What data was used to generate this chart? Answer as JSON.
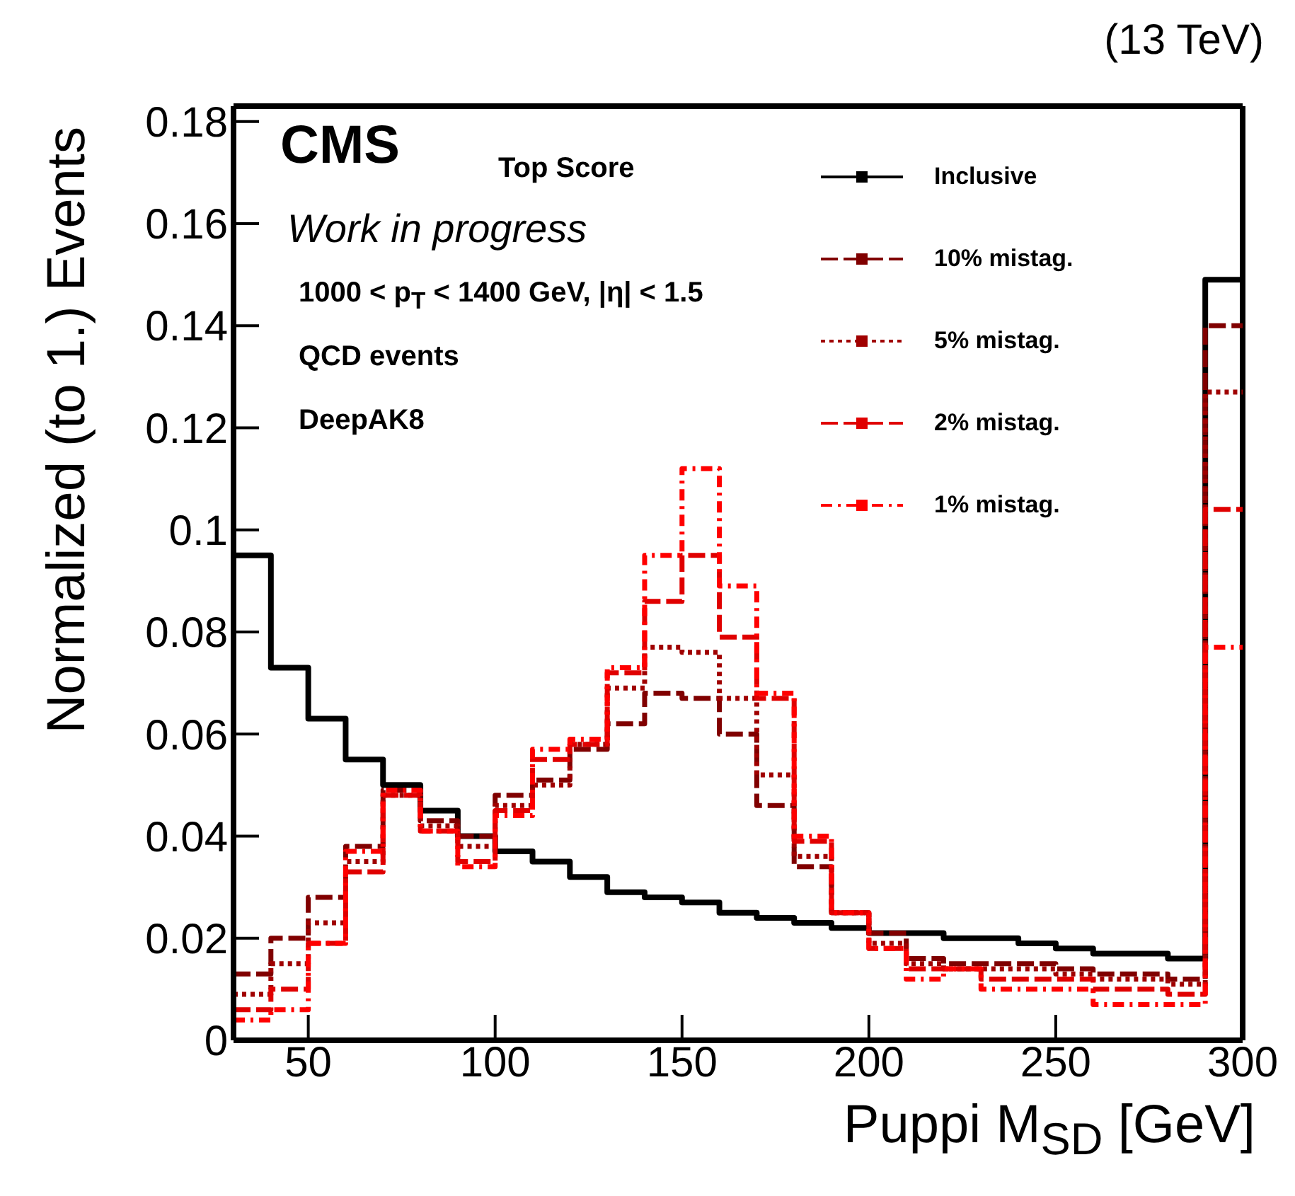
{
  "chart_data": {
    "type": "histogram",
    "title": "(13 TeV)",
    "xlabel": "Puppi M$_{SD}$ [GeV]",
    "ylabel": "Normalized (to 1.) Events",
    "annotations": [
      "CMS",
      "Top Score",
      "Work in progress",
      "1000 < p$_{T}$ < 1400 GeV, |η| < 1.5",
      "QCD events",
      "DeepAK8"
    ],
    "bins": [
      30,
      40,
      50,
      60,
      70,
      80,
      90,
      100,
      110,
      120,
      130,
      140,
      150,
      160,
      170,
      180,
      190,
      200,
      210,
      220,
      230,
      240,
      250,
      260,
      270,
      280,
      290,
      300
    ],
    "series": [
      {
        "name": "Inclusive",
        "color": "#000000",
        "line_style": "solid",
        "values": [
          0.095,
          0.073,
          0.063,
          0.055,
          0.05,
          0.045,
          0.04,
          0.037,
          0.035,
          0.032,
          0.029,
          0.028,
          0.027,
          0.025,
          0.024,
          0.023,
          0.022,
          0.021,
          0.021,
          0.02,
          0.02,
          0.019,
          0.018,
          0.017,
          0.017,
          0.016,
          0.149
        ]
      },
      {
        "name": "10% mistag.",
        "color": "#800000",
        "line_style": "dashed",
        "values": [
          0.013,
          0.02,
          0.028,
          0.038,
          0.049,
          0.043,
          0.04,
          0.048,
          0.051,
          0.057,
          0.062,
          0.068,
          0.067,
          0.06,
          0.046,
          0.034,
          0.025,
          0.021,
          0.016,
          0.015,
          0.015,
          0.015,
          0.014,
          0.013,
          0.013,
          0.012,
          0.14
        ]
      },
      {
        "name": "5% mistag.",
        "color": "#a00000",
        "line_style": "dotted",
        "values": [
          0.009,
          0.015,
          0.023,
          0.035,
          0.048,
          0.042,
          0.038,
          0.046,
          0.05,
          0.058,
          0.069,
          0.077,
          0.076,
          0.067,
          0.052,
          0.036,
          0.025,
          0.019,
          0.015,
          0.014,
          0.014,
          0.014,
          0.013,
          0.012,
          0.012,
          0.011,
          0.127
        ]
      },
      {
        "name": "2% mistag.",
        "color": "#e00000",
        "line_style": "dashed",
        "values": [
          0.006,
          0.01,
          0.019,
          0.033,
          0.048,
          0.041,
          0.035,
          0.045,
          0.055,
          0.058,
          0.072,
          0.086,
          0.095,
          0.079,
          0.067,
          0.039,
          0.025,
          0.018,
          0.014,
          0.014,
          0.012,
          0.012,
          0.012,
          0.01,
          0.01,
          0.009,
          0.104
        ]
      },
      {
        "name": "1% mistag.",
        "color": "#ff0000",
        "line_style": "dashed",
        "values": [
          0.004,
          0.006,
          0.019,
          0.037,
          0.049,
          0.041,
          0.034,
          0.044,
          0.057,
          0.059,
          0.073,
          0.095,
          0.112,
          0.089,
          0.068,
          0.04,
          0.025,
          0.018,
          0.012,
          0.014,
          0.01,
          0.01,
          0.01,
          0.007,
          0.007,
          0.007,
          0.077
        ]
      }
    ],
    "xlim": [
      30,
      300
    ],
    "xticks": [
      50,
      100,
      150,
      200,
      250,
      300
    ],
    "ylim": [
      0,
      0.183
    ],
    "yticks": [
      0,
      0.02,
      0.04,
      0.06,
      0.08,
      0.1,
      0.12,
      0.14,
      0.16,
      0.18
    ],
    "legend": "top right",
    "grid": false
  }
}
